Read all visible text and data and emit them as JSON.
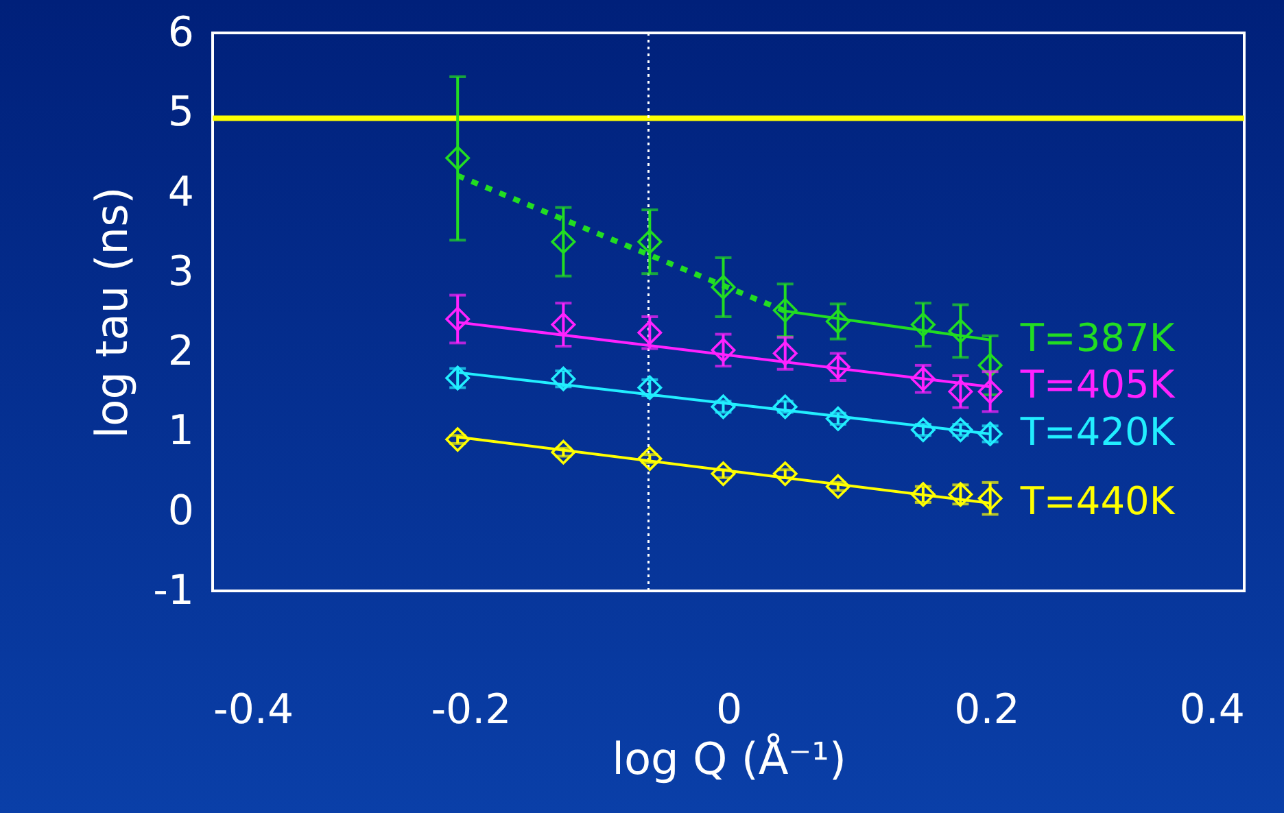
{
  "chart_data": {
    "type": "scatter",
    "xlabel": "log Q (Å⁻¹)",
    "ylabel": "log tau (ns)",
    "xlim": [
      -0.4,
      0.4
    ],
    "xticks": [
      -0.4,
      -0.2,
      0,
      0.2,
      0.4
    ],
    "ylim": [
      -1,
      6
    ],
    "yticks": [
      -1,
      0,
      1,
      2,
      3,
      4,
      5,
      6
    ],
    "grid": false,
    "x": [
      -0.21,
      -0.128,
      -0.061,
      -0.004,
      0.044,
      0.085,
      0.151,
      0.18,
      0.203
    ],
    "series": [
      {
        "name": "T=387K",
        "color": "#22dd22",
        "marker": "diamond",
        "values": [
          4.43,
          3.38,
          3.38,
          2.81,
          2.52,
          2.38,
          2.34,
          2.26,
          1.83
        ],
        "errors": [
          [
            3.4,
            5.45
          ],
          0.43,
          0.4,
          0.37,
          0.33,
          0.22,
          0.27,
          0.33,
          0.37
        ]
      },
      {
        "name": "T=405K",
        "color": "#ff22ff",
        "marker": "diamond",
        "values": [
          2.41,
          2.34,
          2.24,
          2.02,
          1.98,
          1.81,
          1.66,
          1.5,
          1.5
        ],
        "errors": [
          0.3,
          0.27,
          0.2,
          0.2,
          0.2,
          0.17,
          0.17,
          0.2,
          0.25
        ]
      },
      {
        "name": "T=420K",
        "color": "#22eeff",
        "marker": "diamond",
        "values": [
          1.67,
          1.66,
          1.55,
          1.31,
          1.31,
          1.16,
          1.02,
          1.02,
          0.97
        ],
        "errors": [
          0.12,
          0.1,
          0.1,
          0.07,
          0.07,
          0.07,
          0.07,
          0.07,
          0.1
        ]
      },
      {
        "name": "T=440K",
        "color": "#ffff00",
        "marker": "diamond",
        "values": [
          0.9,
          0.74,
          0.66,
          0.47,
          0.47,
          0.31,
          0.21,
          0.21,
          0.16
        ],
        "errors": [
          0.05,
          0.05,
          0.05,
          0.05,
          0.05,
          0.05,
          0.1,
          0.12,
          0.2
        ]
      },
      {
        "type": "line",
        "color": "#22dd22",
        "line_style": "dashed",
        "marker": "none",
        "x": [
          -0.21,
          0.044
        ],
        "values": [
          4.21,
          2.51
        ]
      },
      {
        "type": "line",
        "color": "#22dd22",
        "line_style": "solid",
        "marker": "none",
        "x": [
          0.044,
          0.203
        ],
        "values": [
          2.51,
          2.15
        ]
      },
      {
        "type": "line",
        "color": "#ff22ff",
        "line_style": "solid",
        "marker": "none",
        "x": [
          -0.21,
          0.203
        ],
        "values": [
          2.37,
          1.56
        ]
      },
      {
        "type": "line",
        "color": "#22eeff",
        "line_style": "solid",
        "marker": "none",
        "x": [
          -0.21,
          0.203
        ],
        "values": [
          1.74,
          0.97
        ]
      },
      {
        "type": "line",
        "color": "#ffff00",
        "line_style": "solid",
        "marker": "none",
        "x": [
          -0.21,
          0.203
        ],
        "values": [
          0.93,
          0.1
        ]
      }
    ],
    "ref_lines": [
      {
        "axis": "y",
        "value": 4.93,
        "color": "#ffff00",
        "line_style": "solid"
      },
      {
        "axis": "x",
        "value": -0.062,
        "color": "#ffffff",
        "line_style": "dotted"
      }
    ]
  }
}
